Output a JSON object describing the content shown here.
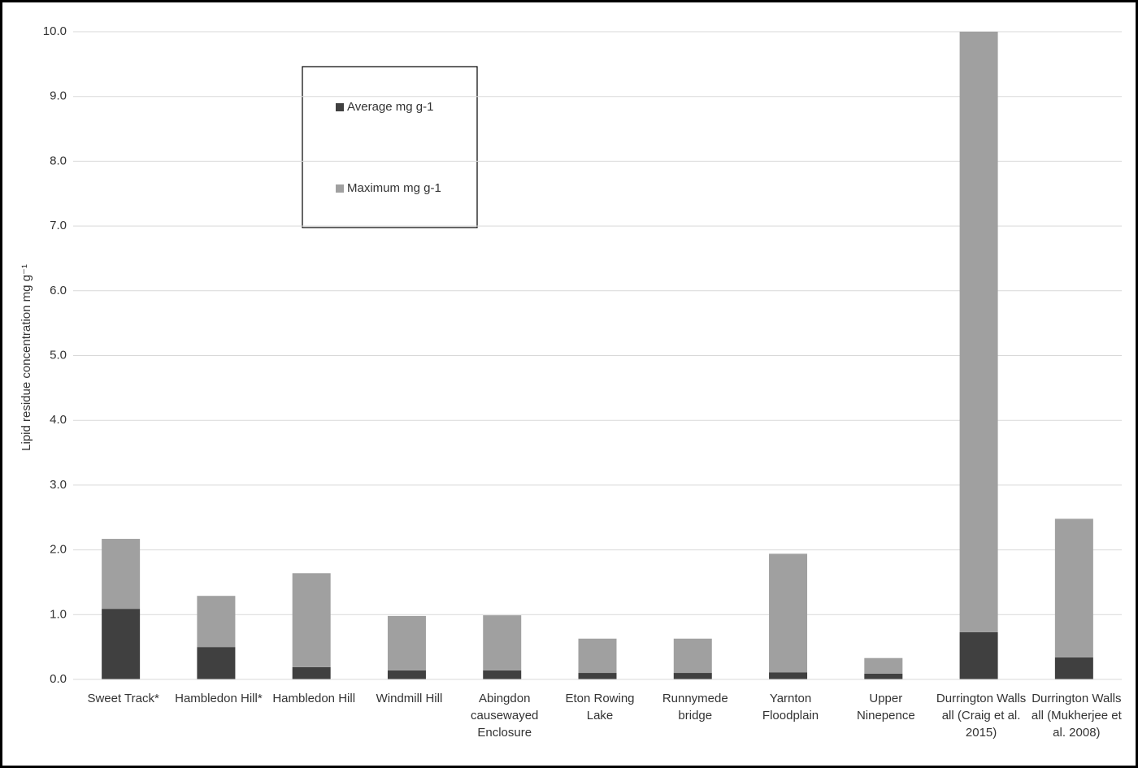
{
  "chart_data": {
    "type": "stacked_bar",
    "y_label": "Lipid residue concentration mg g⁻¹",
    "categories": [
      "Sweet Track*",
      "Hambledon Hill*",
      "Hambledon Hill",
      "Windmill Hill",
      "Abingdon causewayed Enclosure",
      "Eton Rowing Lake",
      "Runnymede bridge",
      "Yarnton Floodplain",
      "Upper Ninepence",
      "Durrington Walls all (Craig et al. 2015)",
      "Durrington Walls all (Mukherjee et al. 2008)"
    ],
    "series": [
      {
        "name": "Average mg g-1",
        "color": "#404040",
        "values": [
          1.09,
          0.5,
          0.19,
          0.14,
          0.14,
          0.1,
          0.1,
          0.11,
          0.09,
          0.73,
          0.34
        ]
      },
      {
        "name": "Maximum mg g-1",
        "color": "#a0a0a0",
        "values": [
          1.08,
          0.79,
          1.45,
          0.84,
          0.85,
          0.53,
          0.53,
          1.83,
          0.24,
          9.27,
          2.14
        ]
      }
    ],
    "ylim": [
      0,
      10
    ],
    "yticks": [
      {
        "value": 0,
        "label": "0.0"
      },
      {
        "value": 1,
        "label": "1.0"
      },
      {
        "value": 2,
        "label": "2.0"
      },
      {
        "value": 3,
        "label": "3.0"
      },
      {
        "value": 4,
        "label": "4.0"
      },
      {
        "value": 5,
        "label": "5.0"
      },
      {
        "value": 6,
        "label": "6.0"
      },
      {
        "value": 7,
        "label": "7.0"
      },
      {
        "value": 8,
        "label": "8.0"
      },
      {
        "value": 9,
        "label": "9.0"
      },
      {
        "value": 10,
        "label": "10.0"
      }
    ],
    "grid": true
  }
}
